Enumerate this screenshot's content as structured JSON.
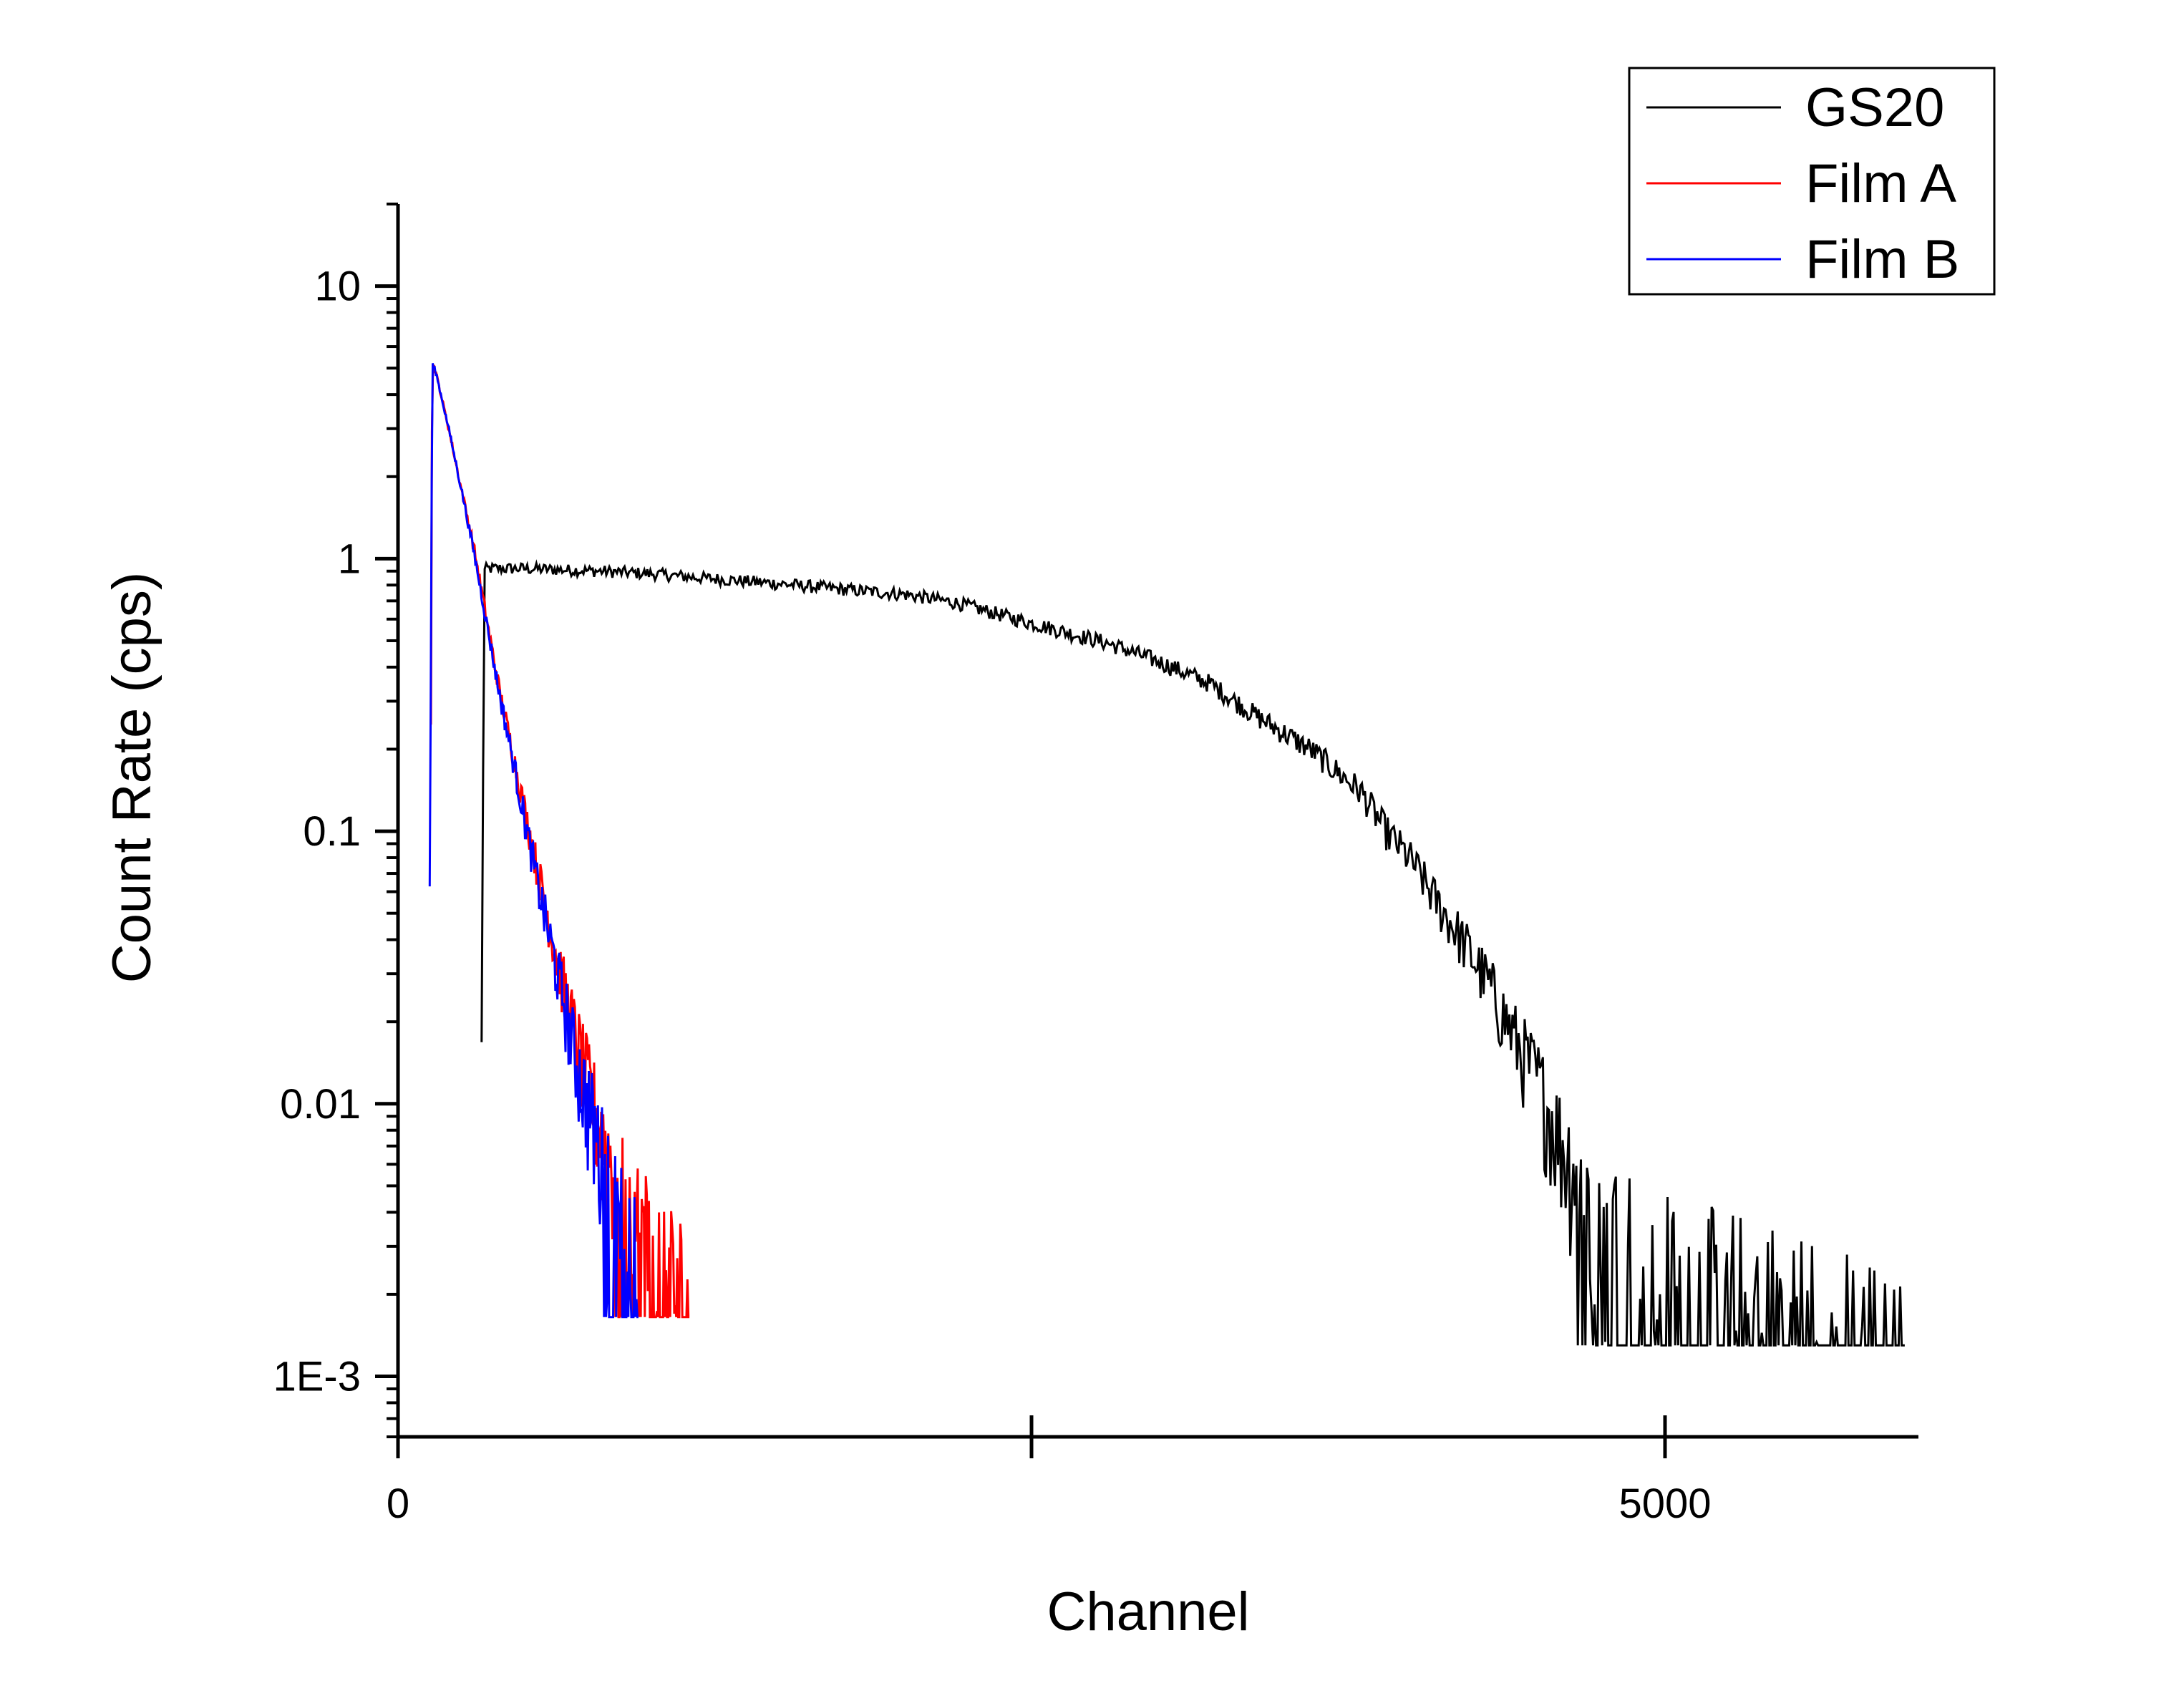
{
  "chart_data": {
    "type": "line",
    "title": "",
    "xlabel": "Channel",
    "ylabel": "Count Rate (cps)",
    "x_scale": "linear",
    "y_scale": "log",
    "xlim": [
      0,
      6000
    ],
    "ylim": [
      0.0006,
      20
    ],
    "x_ticks": [
      {
        "value": 0,
        "label": "0"
      },
      {
        "value": 2500,
        "label": ""
      },
      {
        "value": 5000,
        "label": "5000"
      }
    ],
    "y_ticks": [
      {
        "value": 0.001,
        "label": "1E-3"
      },
      {
        "value": 0.01,
        "label": "0.01"
      },
      {
        "value": 0.1,
        "label": "0.1"
      },
      {
        "value": 1,
        "label": "1"
      },
      {
        "value": 10,
        "label": "10"
      }
    ],
    "grid": false,
    "legend": {
      "position": "top-right"
    },
    "series": [
      {
        "name": "GS20",
        "color": "#000000",
        "x": [
          330,
          340,
          350,
          500,
          800,
          1000,
          1200,
          1500,
          1700,
          2000,
          2200,
          2500,
          2800,
          3000,
          3200,
          3400,
          3600,
          3800,
          3900,
          4000,
          4100,
          4200,
          4300,
          4400,
          4500,
          4600,
          4700,
          4800,
          4900,
          5000,
          5200,
          5400,
          5600,
          5800,
          5950
        ],
        "y": [
          0.015,
          0.9,
          0.92,
          0.92,
          0.9,
          0.88,
          0.85,
          0.81,
          0.78,
          0.74,
          0.69,
          0.58,
          0.49,
          0.42,
          0.35,
          0.26,
          0.2,
          0.14,
          0.1,
          0.078,
          0.055,
          0.04,
          0.028,
          0.018,
          0.012,
          0.007,
          0.005,
          0.004,
          0.003,
          0.0025,
          0.002,
          0.0018,
          0.0015,
          0.0012,
          0.001
        ]
      },
      {
        "name": "Film A",
        "color": "#ff0000",
        "x": [
          130,
          135,
          150,
          200,
          250,
          300,
          350,
          400,
          450,
          500,
          550,
          600,
          650,
          700,
          750,
          800,
          850,
          900,
          950,
          1000,
          1050,
          1100,
          1150
        ],
        "y": [
          0.25,
          5.3,
          4.8,
          3.0,
          1.8,
          1.1,
          0.6,
          0.33,
          0.2,
          0.12,
          0.073,
          0.045,
          0.028,
          0.018,
          0.012,
          0.008,
          0.006,
          0.0045,
          0.0035,
          0.003,
          0.0025,
          0.002,
          0.0018
        ]
      },
      {
        "name": "Film B",
        "color": "#0000ff",
        "x": [
          125,
          130,
          135,
          150,
          200,
          250,
          300,
          350,
          400,
          450,
          500,
          550,
          600,
          650,
          700,
          750,
          800,
          850,
          900,
          950
        ],
        "y": [
          0.06,
          0.45,
          5.2,
          4.8,
          3.0,
          1.8,
          1.05,
          0.58,
          0.32,
          0.19,
          0.11,
          0.065,
          0.04,
          0.025,
          0.015,
          0.01,
          0.0065,
          0.0045,
          0.0035,
          0.0028
        ]
      }
    ]
  }
}
